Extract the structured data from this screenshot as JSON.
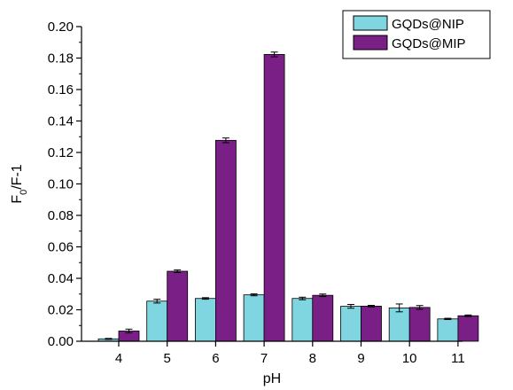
{
  "chart_data": {
    "type": "bar",
    "title": "",
    "xlabel": "pH",
    "ylabel_main": "F",
    "ylabel_sub": "0",
    "ylabel_rest": "/F-1",
    "categories": [
      "4",
      "5",
      "6",
      "7",
      "8",
      "9",
      "10",
      "11"
    ],
    "ylim": [
      0,
      0.2
    ],
    "yticks": [
      "0.00",
      "0.02",
      "0.04",
      "0.06",
      "0.08",
      "0.10",
      "0.12",
      "0.14",
      "0.16",
      "0.18",
      "0.20"
    ],
    "ytick_values": [
      0,
      0.02,
      0.04,
      0.06,
      0.08,
      0.1,
      0.12,
      0.14,
      0.16,
      0.18,
      0.2
    ],
    "legend_position": "top-right",
    "series": [
      {
        "name": "GQDs@NIP",
        "color": "#7fd5e0",
        "values": [
          0.0015,
          0.0255,
          0.0272,
          0.0295,
          0.0272,
          0.0222,
          0.0212,
          0.0142
        ],
        "errors": [
          0.0003,
          0.0012,
          0.0005,
          0.0006,
          0.0008,
          0.0012,
          0.0025,
          0.0004
        ]
      },
      {
        "name": "GQDs@MIP",
        "color": "#7a1f86",
        "values": [
          0.0065,
          0.0445,
          0.1277,
          0.1823,
          0.0292,
          0.0223,
          0.0215,
          0.0162
        ],
        "errors": [
          0.0012,
          0.0008,
          0.0015,
          0.0015,
          0.0008,
          0.0005,
          0.0012,
          0.0005
        ]
      }
    ]
  }
}
